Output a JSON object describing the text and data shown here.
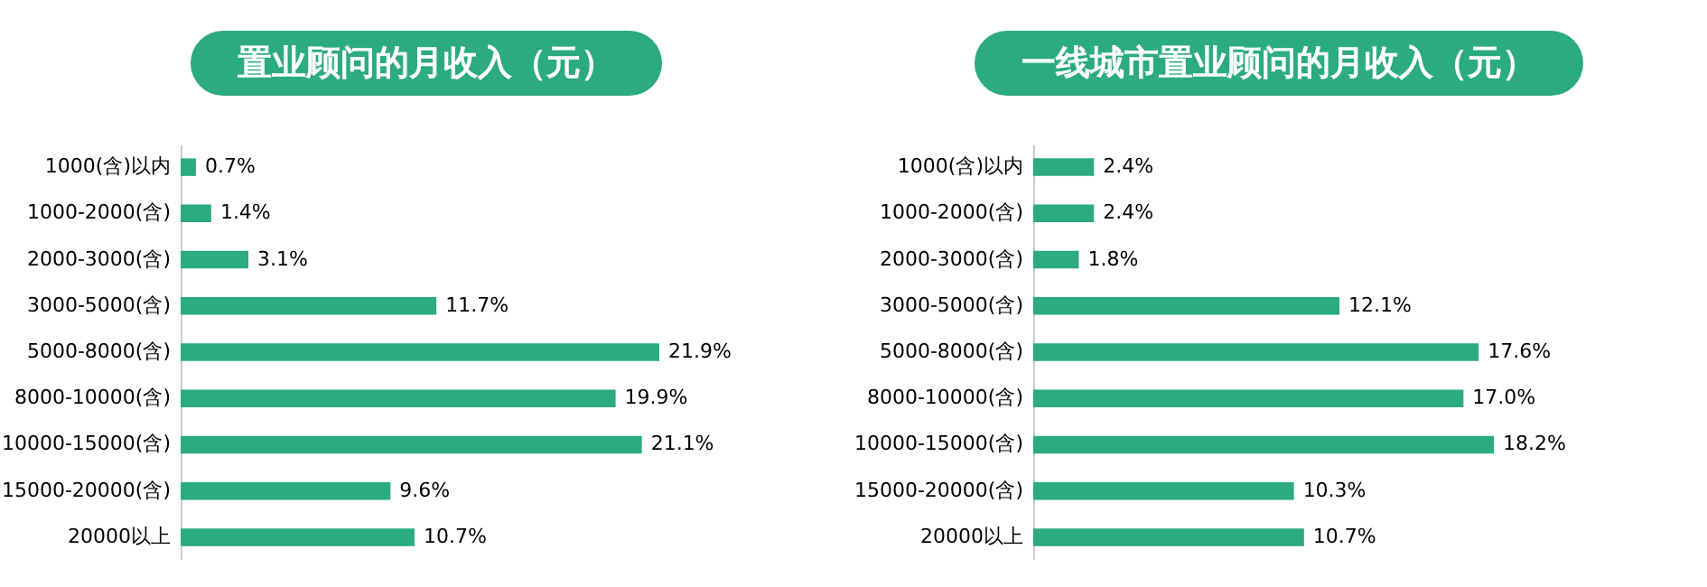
{
  "chart_data": [
    {
      "type": "bar",
      "orientation": "horizontal",
      "title": "置业顾问的月收入（元）",
      "color": "#2bab7e",
      "categories": [
        "1000(含)以内",
        "1000-2000(含)",
        "2000-3000(含)",
        "3000-5000(含)",
        "5000-8000(含)",
        "8000-10000(含)",
        "10000-15000(含)",
        "15000-20000(含)",
        "20000以上"
      ],
      "values": [
        0.7,
        1.4,
        3.1,
        11.7,
        21.9,
        19.9,
        21.1,
        9.6,
        10.7
      ],
      "value_labels": [
        "0.7%",
        "1.4%",
        "3.1%",
        "11.7%",
        "21.9%",
        "19.9%",
        "21.1%",
        "9.6%",
        "10.7%"
      ]
    },
    {
      "type": "bar",
      "orientation": "horizontal",
      "title": "一线城市置业顾问的月收入（元）",
      "color": "#2bab7e",
      "categories": [
        "1000(含)以内",
        "1000-2000(含)",
        "2000-3000(含)",
        "3000-5000(含)",
        "5000-8000(含)",
        "8000-10000(含)",
        "10000-15000(含)",
        "15000-20000(含)",
        "20000以上"
      ],
      "values": [
        2.4,
        2.4,
        1.8,
        12.1,
        17.6,
        17.0,
        18.2,
        10.3,
        10.7
      ],
      "value_labels": [
        "2.4%",
        "2.4%",
        "1.8%",
        "12.1%",
        "17.6%",
        "17.0%",
        "18.2%",
        "10.3%",
        "10.7%"
      ]
    }
  ]
}
